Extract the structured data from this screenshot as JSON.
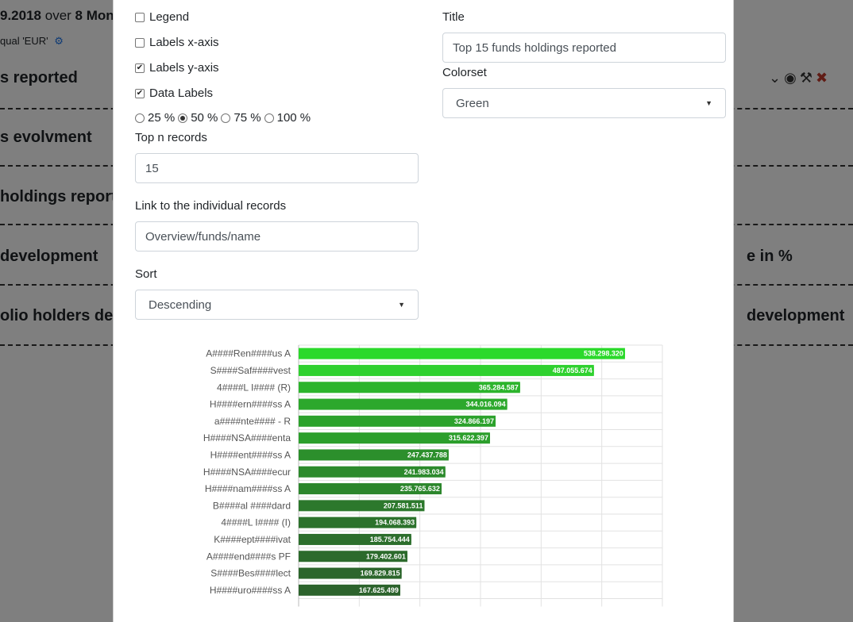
{
  "background": {
    "header_date": "9.2018",
    "header_over": "over",
    "header_months": "8 Mon",
    "sub_text": "qual 'EUR'",
    "rows": [
      {
        "left": "s reported",
        "right": ""
      },
      {
        "left": "s evolvment",
        "right": ""
      },
      {
        "left": "holdings report",
        "right": ""
      },
      {
        "left": "development",
        "right": "e in %"
      },
      {
        "left": "olio holders deve",
        "right": "development"
      }
    ]
  },
  "form": {
    "legend_label": "Legend",
    "legend_checked": false,
    "labels_x_label": "Labels x-axis",
    "labels_x_checked": false,
    "labels_y_label": "Labels y-axis",
    "labels_y_checked": true,
    "data_labels_label": "Data Labels",
    "data_labels_checked": true,
    "widths": [
      {
        "label": "25 %",
        "selected": false
      },
      {
        "label": "50 %",
        "selected": true
      },
      {
        "label": "75 %",
        "selected": false
      },
      {
        "label": "100 %",
        "selected": false
      }
    ],
    "top_n_label": "Top n records",
    "top_n_value": "15",
    "link_label": "Link to the individual records",
    "link_value": "Overview/funds/name",
    "sort_label": "Sort",
    "sort_value": "Descending",
    "title_label": "Title",
    "title_value": "Top 15 funds holdings reported",
    "colorset_label": "Colorset",
    "colorset_value": "Green"
  },
  "chart_data": {
    "type": "bar",
    "orientation": "horizontal",
    "categories": [
      "A####Ren####us A",
      "S####Saf####vest",
      "4####L I#### (R)",
      "H####ern####ss A",
      "a####nte#### - R",
      "H####NSA####enta",
      "H####ent####ss A",
      "H####NSA####ecur",
      "H####nam####ss A",
      "B####al ####dard",
      "4####L I#### (I)",
      "K####ept####ivat",
      "A####end####s PF",
      "S####Bes####lect",
      "H####uro####ss A"
    ],
    "values": [
      538298320,
      487055674,
      365284587,
      344016094,
      324866197,
      315622397,
      247437788,
      241983034,
      235765632,
      207581511,
      194068393,
      185754444,
      179402601,
      169829815,
      167625499
    ],
    "data_labels": [
      "538.298.320",
      "487.055.674",
      "365.284.587",
      "344.016.094",
      "324.866.197",
      "315.622.397",
      "247.437.788",
      "241.983.034",
      "235.765.632",
      "207.581.511",
      "194.068.393",
      "185.754.444",
      "179.402.601",
      "169.829.815",
      "167.625.499"
    ],
    "xlim": [
      0,
      600000000
    ],
    "grid": true,
    "colors": [
      "#2bd92b",
      "#2fd12f",
      "#2cb42c",
      "#2ca82c",
      "#2ca22c",
      "#2c9f2c",
      "#2c8f2c",
      "#2c8a2c",
      "#2c862c",
      "#2c782c",
      "#2c722c",
      "#2c6e2c",
      "#2c6a2c",
      "#2c662c",
      "#2c632c"
    ]
  }
}
